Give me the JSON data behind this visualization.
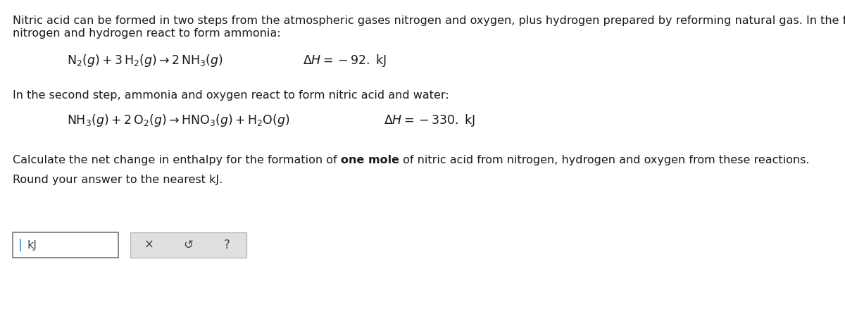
{
  "bg_color": "#ffffff",
  "text_color": "#1a1a1a",
  "font_size_body": 11.5,
  "font_size_eq": 12.5,
  "font_size_btn": 12,
  "para1_line1": "Nitric acid can be formed in two steps from the atmospheric gases nitrogen and oxygen, plus hydrogen prepared by reforming natural gas. In the first step,",
  "para1_line2": "nitrogen and hydrogen react to form ammonia:",
  "eq1_lhs": "$\\mathrm{N_2}(g) + 3\\,\\mathrm{H_2}(g) \\rightarrow 2\\,\\mathrm{NH_3}(g)$",
  "eq1_dh": "$\\Delta H = -92.\\;\\mathrm{kJ}$",
  "para2": "In the second step, ammonia and oxygen react to form nitric acid and water:",
  "eq2_lhs": "$\\mathrm{NH_3}(g) + 2\\,\\mathrm{O_2}(g) \\rightarrow \\mathrm{HNO_3}(g) + \\mathrm{H_2O}(g)$",
  "eq2_dh": "$\\Delta H = -330.\\;\\mathrm{kJ}$",
  "para3a": "Calculate the net change in enthalpy for the formation of ",
  "para3b": "one mole",
  "para3c": " of nitric acid from nitrogen, hydrogen and oxygen from these reactions.",
  "para4": "Round your answer to the nearest kJ.",
  "input_text": "kJ",
  "btn1": "×",
  "btn2": "↺",
  "btn3": "?"
}
